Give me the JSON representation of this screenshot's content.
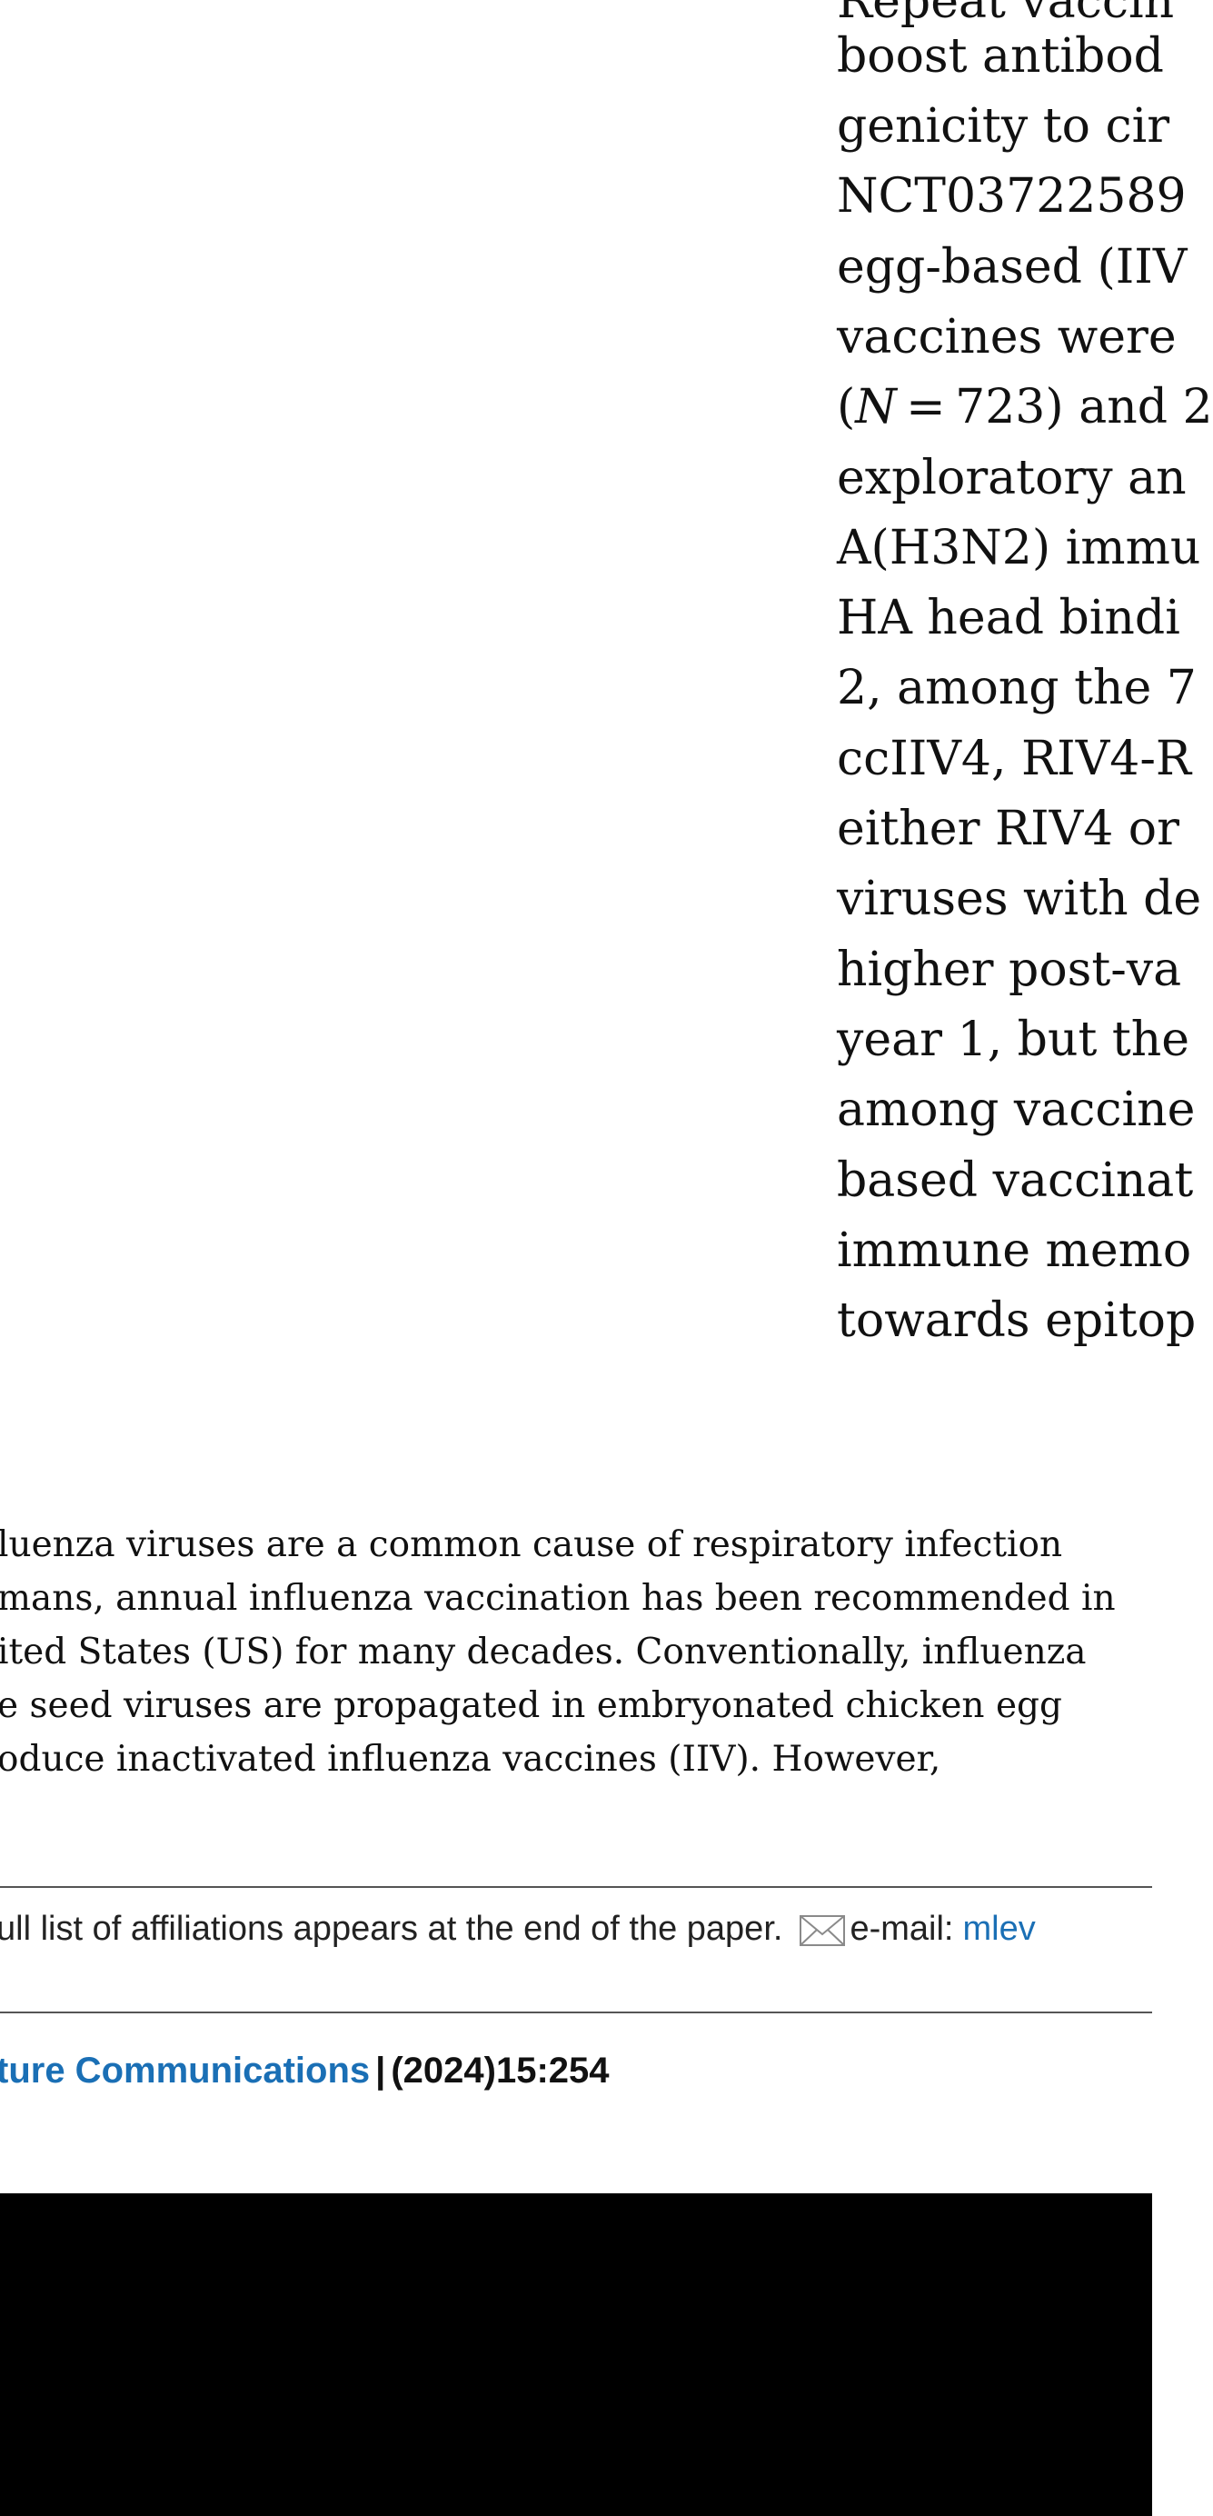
{
  "abstract": {
    "lines": [
      "Repeat vaccin",
      "boost antibod",
      "genicity to cir",
      "NCT03722589",
      "egg-based (IIV",
      "vaccines were",
      "(N = 723) and 2",
      "exploratory an",
      "A(H3N2) immu",
      "HA head bindi",
      "2, among the 7",
      "ccIIV4, RIV4-R",
      "either RIV4 or",
      "viruses with de",
      "higher post-va",
      "year 1, but the",
      "among vaccine",
      "based vaccinat",
      "immune memo",
      "towards epitop"
    ]
  },
  "introduction": {
    "lines": [
      "luenza viruses are a common cause of respiratory infection",
      "mans, annual influenza vaccination has been recommended in",
      "ited States (US) for many decades. Conventionally, influenza",
      "e seed viruses are propagated in embryonated chicken egg",
      "oduce   inactivated   influenza   vaccines   (IIV).   However,"
    ]
  },
  "footnote": {
    "affiliations_text": "ull list of affiliations appears at the end of the paper.",
    "email_label": "e-mail:",
    "email_value": "mlev"
  },
  "footer": {
    "journal": "ture Communications",
    "separator": "|",
    "citation": "(2024)15:254"
  },
  "colors": {
    "link": "#1a6fb5",
    "text": "#111111",
    "background": "#ffffff",
    "bottom_band": "#000000"
  },
  "icons": {
    "email": "envelope-icon"
  }
}
